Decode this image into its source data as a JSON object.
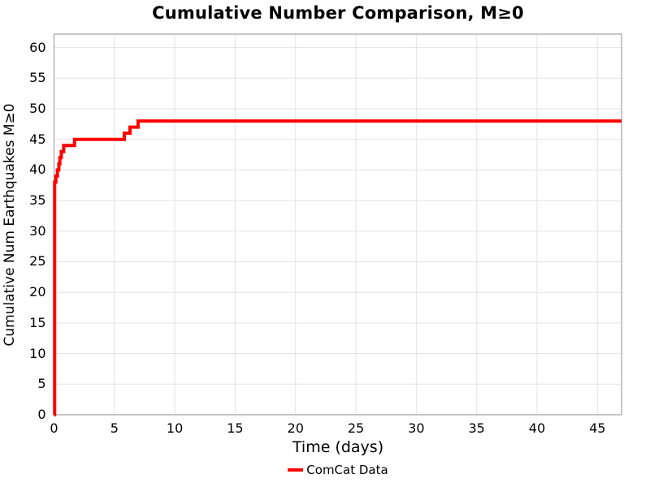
{
  "chart_data": {
    "type": "line",
    "line_style": "step-post",
    "title": "Cumulative Number Comparison, M≥0",
    "xlabel": "Time (days)",
    "ylabel": "Cumulative Num Earthquakes M≥0",
    "xlim": [
      0,
      47
    ],
    "ylim": [
      0,
      62.2
    ],
    "xticks": [
      0,
      5,
      10,
      15,
      20,
      25,
      30,
      35,
      40,
      45
    ],
    "yticks": [
      0,
      5,
      10,
      15,
      20,
      25,
      30,
      35,
      40,
      45,
      50,
      55,
      60
    ],
    "grid": true,
    "grid_color": "#e3e3e3",
    "spine_color": "#a3a3a3",
    "legend_position": "bottom-center",
    "series": [
      {
        "name": "ComCat Data",
        "color": "#ff0000",
        "line_width": 4,
        "points": [
          [
            0,
            0
          ],
          [
            0.05,
            38
          ],
          [
            0.15,
            39
          ],
          [
            0.28,
            40
          ],
          [
            0.4,
            41
          ],
          [
            0.48,
            42
          ],
          [
            0.6,
            43
          ],
          [
            0.8,
            44
          ],
          [
            1.7,
            45
          ],
          [
            5.82,
            46
          ],
          [
            6.29,
            47
          ],
          [
            6.96,
            48
          ],
          [
            47,
            48
          ]
        ]
      }
    ]
  },
  "legend": {
    "label": "ComCat Data"
  }
}
